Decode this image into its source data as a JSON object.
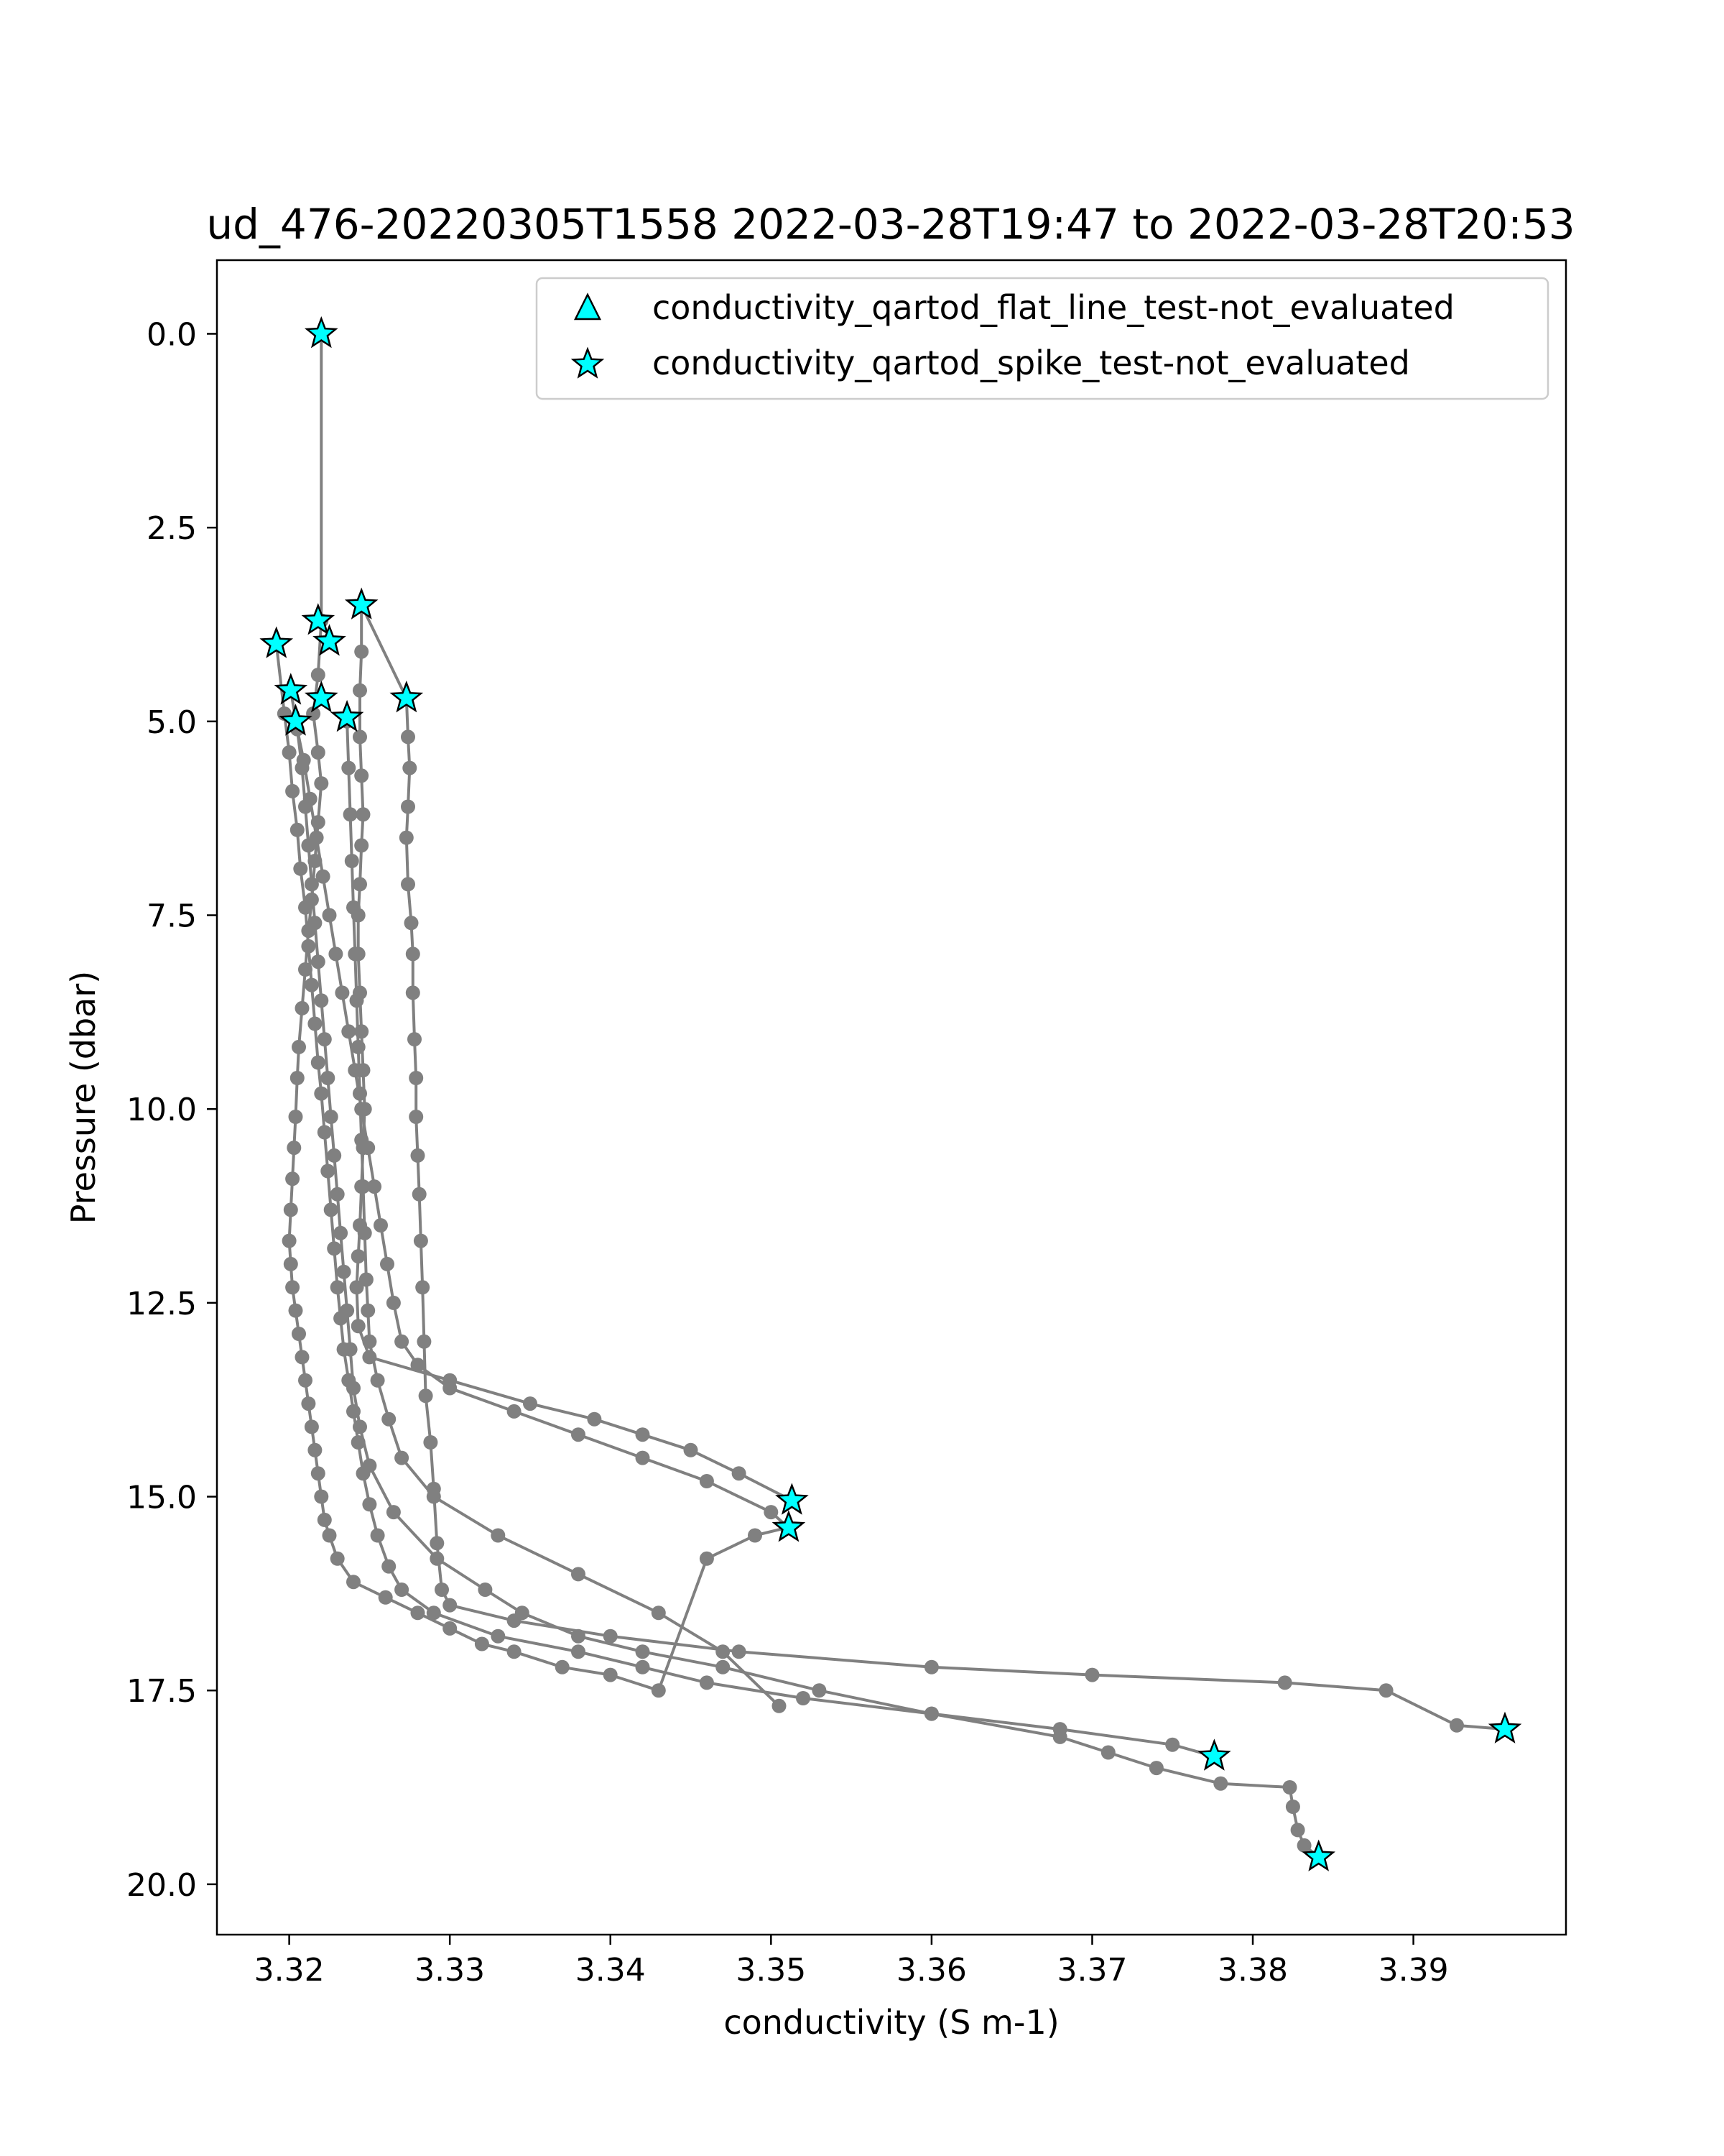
{
  "chart_data": {
    "type": "scatter",
    "title": "ud_476-20220305T1558 2022-03-28T19:47 to 2022-03-28T20:53",
    "xlabel": "conductivity (S m-1)",
    "ylabel": "Pressure (dbar)",
    "xlim": [
      3.3155,
      3.3995
    ],
    "ylim": [
      20.65,
      -0.95
    ],
    "y_inverted": true,
    "grid": false,
    "legend_position": "top-right",
    "x_ticks": [
      3.32,
      3.33,
      3.34,
      3.35,
      3.36,
      3.37,
      3.38,
      3.39
    ],
    "x_tick_labels": [
      "3.32",
      "3.33",
      "3.34",
      "3.35",
      "3.36",
      "3.37",
      "3.38",
      "3.39"
    ],
    "y_ticks": [
      0.0,
      2.5,
      5.0,
      7.5,
      10.0,
      12.5,
      15.0,
      17.5,
      20.0
    ],
    "y_tick_labels": [
      "0.0",
      "2.5",
      "5.0",
      "7.5",
      "10.0",
      "12.5",
      "15.0",
      "17.5",
      "20.0"
    ],
    "colors": {
      "profile": "#808080",
      "flag": "#00ffff",
      "edge": "#000000"
    },
    "legend": [
      {
        "label": "conductivity_qartod_flat_line_test-not_evaluated",
        "marker": "triangle"
      },
      {
        "label": "conductivity_qartod_spike_test-not_evaluated",
        "marker": "star"
      }
    ],
    "series": [
      {
        "x": [
          3.322,
          3.322,
          3.3218,
          3.3215,
          3.3218,
          3.322,
          3.3218,
          3.3216,
          3.3214,
          3.3212,
          3.321,
          3.3208,
          3.3206,
          3.3205,
          3.3204,
          3.3203,
          3.3202,
          3.3201,
          3.32,
          3.3201,
          3.3202,
          3.3204,
          3.3206,
          3.3208,
          3.321,
          3.3212,
          3.3214,
          3.3216,
          3.3218,
          3.322,
          3.3222,
          3.3225,
          3.323,
          3.324,
          3.326,
          3.328,
          3.33,
          3.332,
          3.334,
          3.337,
          3.34,
          3.343,
          3.346,
          3.349,
          3.351
        ],
        "y": [
          0.0,
          3.7,
          4.4,
          4.9,
          5.4,
          5.8,
          6.3,
          6.8,
          7.3,
          7.7,
          8.2,
          8.7,
          9.2,
          9.6,
          10.1,
          10.5,
          10.9,
          11.3,
          11.7,
          12.0,
          12.3,
          12.6,
          12.9,
          13.2,
          13.5,
          13.8,
          14.1,
          14.4,
          14.7,
          15.0,
          15.3,
          15.5,
          15.8,
          16.1,
          16.3,
          16.5,
          16.7,
          16.9,
          17.0,
          17.2,
          17.3,
          17.5,
          15.8,
          15.5,
          15.4
        ]
      },
      {
        "x": [
          3.3245,
          3.3245,
          3.3244,
          3.3244,
          3.3245,
          3.3246,
          3.3245,
          3.3244,
          3.3243,
          3.3243,
          3.3244,
          3.3245,
          3.3246,
          3.3247,
          3.3246,
          3.3245,
          3.3244,
          3.3243,
          3.3242,
          3.3243,
          3.325,
          3.33,
          3.335,
          3.339,
          3.342,
          3.345,
          3.348,
          3.3513
        ],
        "y": [
          3.5,
          4.1,
          4.6,
          5.2,
          5.7,
          6.2,
          6.6,
          7.1,
          7.5,
          8.0,
          8.5,
          9.0,
          9.5,
          10.0,
          10.5,
          11.0,
          11.5,
          11.9,
          12.3,
          12.8,
          13.2,
          13.5,
          13.8,
          14.0,
          14.2,
          14.4,
          14.7,
          15.05
        ]
      },
      {
        "x": [
          3.3245,
          3.3273,
          3.3274,
          3.3275,
          3.3274,
          3.3273,
          3.3274,
          3.3276,
          3.3277,
          3.3277,
          3.3278,
          3.3279,
          3.3279,
          3.328,
          3.3281,
          3.3282,
          3.3283,
          3.3284,
          3.3285,
          3.3288,
          3.329,
          3.3292,
          3.3295,
          3.33,
          3.334,
          3.34,
          3.348,
          3.36,
          3.37,
          3.382,
          3.3883,
          3.3927,
          3.3957
        ],
        "y": [
          3.5,
          4.7,
          5.2,
          5.6,
          6.1,
          6.5,
          7.1,
          7.6,
          8.0,
          8.5,
          9.1,
          9.6,
          10.1,
          10.6,
          11.1,
          11.7,
          12.3,
          13.0,
          13.7,
          14.3,
          14.9,
          15.6,
          16.2,
          16.4,
          16.6,
          16.8,
          17.0,
          17.2,
          17.3,
          17.4,
          17.5,
          17.95,
          18.0
        ]
      },
      {
        "x": [
          3.3192,
          3.3197,
          3.32,
          3.3202,
          3.3205,
          3.3207,
          3.321,
          3.3212,
          3.3214,
          3.3216,
          3.3218,
          3.322,
          3.3222,
          3.3224,
          3.3226,
          3.3228,
          3.323,
          3.3232,
          3.3234,
          3.3237,
          3.324,
          3.3243,
          3.3246,
          3.325,
          3.3255,
          3.3262,
          3.327,
          3.329,
          3.333,
          3.338,
          3.342,
          3.346,
          3.352,
          3.36,
          3.368,
          3.375,
          3.3776
        ],
        "y": [
          4.0,
          4.9,
          5.4,
          5.9,
          6.4,
          6.9,
          7.4,
          7.9,
          8.4,
          8.9,
          9.4,
          9.8,
          10.3,
          10.8,
          11.3,
          11.8,
          12.3,
          12.7,
          13.1,
          13.5,
          13.9,
          14.3,
          14.7,
          15.1,
          15.5,
          15.9,
          16.2,
          16.5,
          16.8,
          17.0,
          17.2,
          17.4,
          17.6,
          17.8,
          18.0,
          18.2,
          18.35
        ]
      },
      {
        "x": [
          3.3201,
          3.3205,
          3.3208,
          3.321,
          3.3212,
          3.3214,
          3.3216,
          3.3218,
          3.322,
          3.3222,
          3.3224,
          3.3226,
          3.3228,
          3.323,
          3.3232,
          3.3234,
          3.3236,
          3.3238,
          3.324,
          3.3244,
          3.325,
          3.3265,
          3.3292,
          3.3322,
          3.3345,
          3.338,
          3.342,
          3.347,
          3.353,
          3.36,
          3.368,
          3.371,
          3.374,
          3.378,
          3.3823,
          3.3825,
          3.3828,
          3.3832,
          3.3841
        ],
        "y": [
          4.6,
          5.1,
          5.6,
          6.1,
          6.6,
          7.1,
          7.6,
          8.1,
          8.6,
          9.1,
          9.6,
          10.1,
          10.6,
          11.1,
          11.6,
          12.1,
          12.6,
          13.1,
          13.6,
          14.1,
          14.6,
          15.2,
          15.8,
          16.2,
          16.5,
          16.8,
          17.0,
          17.2,
          17.5,
          17.8,
          18.1,
          18.3,
          18.5,
          18.7,
          18.75,
          19.0,
          19.3,
          19.5,
          19.65
        ]
      },
      {
        "x": [
          3.3204,
          3.3209,
          3.3213,
          3.3217,
          3.3221,
          3.3225,
          3.3229,
          3.3233,
          3.3237,
          3.3241,
          3.3245,
          3.3249,
          3.3253,
          3.3257,
          3.3261,
          3.3265,
          3.327,
          3.328,
          3.33,
          3.334,
          3.338,
          3.342,
          3.346,
          3.35,
          3.3511
        ],
        "y": [
          5.0,
          5.5,
          6.0,
          6.5,
          7.0,
          7.5,
          8.0,
          8.5,
          9.0,
          9.5,
          10.0,
          10.5,
          11.0,
          11.5,
          12.0,
          12.5,
          13.0,
          13.3,
          13.6,
          13.9,
          14.2,
          14.5,
          14.8,
          15.2,
          15.4
        ]
      },
      {
        "x": [
          3.3236,
          3.3237,
          3.3238,
          3.3239,
          3.324,
          3.3241,
          3.3242,
          3.3243,
          3.3244,
          3.3245,
          3.3246,
          3.3247,
          3.3248,
          3.3249,
          3.325,
          3.3255,
          3.3262,
          3.327,
          3.329,
          3.333,
          3.338,
          3.343,
          3.347,
          3.3505
        ],
        "y": [
          5.0,
          5.6,
          6.2,
          6.8,
          7.4,
          8.0,
          8.6,
          9.2,
          9.8,
          10.4,
          11.0,
          11.6,
          12.2,
          12.6,
          13.0,
          13.5,
          14.0,
          14.5,
          15.0,
          15.5,
          16.0,
          16.5,
          17.0,
          17.7
        ]
      }
    ],
    "flags": {
      "flat_line_not_evaluated": [],
      "spike_not_evaluated": [
        {
          "x": 3.322,
          "y": 0.0
        },
        {
          "x": 3.3245,
          "y": 3.5
        },
        {
          "x": 3.3218,
          "y": 3.7
        },
        {
          "x": 3.3192,
          "y": 4.0
        },
        {
          "x": 3.3225,
          "y": 3.97
        },
        {
          "x": 3.3201,
          "y": 4.6
        },
        {
          "x": 3.322,
          "y": 4.7
        },
        {
          "x": 3.3273,
          "y": 4.7
        },
        {
          "x": 3.3204,
          "y": 5.0
        },
        {
          "x": 3.3236,
          "y": 4.95
        },
        {
          "x": 3.3513,
          "y": 15.05
        },
        {
          "x": 3.3511,
          "y": 15.4
        },
        {
          "x": 3.3957,
          "y": 18.0
        },
        {
          "x": 3.3776,
          "y": 18.35
        },
        {
          "x": 3.3841,
          "y": 19.65
        }
      ]
    }
  }
}
